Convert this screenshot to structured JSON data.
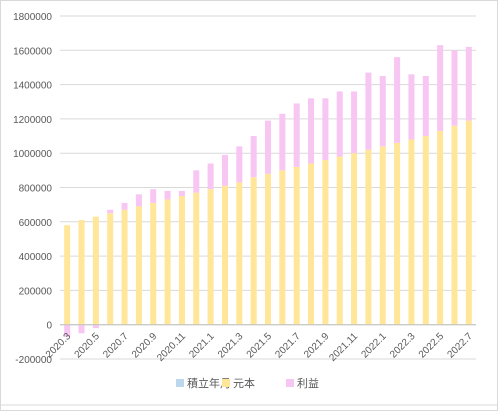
{
  "chart_data": {
    "type": "bar",
    "stacked": true,
    "title": "",
    "xlabel": "",
    "ylabel": "",
    "ylim": [
      -200000,
      1800000
    ],
    "yticks": [
      -200000,
      0,
      200000,
      400000,
      600000,
      800000,
      1000000,
      1200000,
      1400000,
      1600000,
      1800000
    ],
    "grid": true,
    "legend_position": "bottom",
    "x_tick_labels": [
      "2020.3",
      "2020.5",
      "2020.7",
      "2020.9",
      "2020.11",
      "2021.1",
      "2021.3",
      "2021.5",
      "2021.7",
      "2021.9",
      "2021.11",
      "2022.1",
      "2022.3",
      "2022.5",
      "2022.7"
    ],
    "categories": [
      "2020.3",
      "2020.4",
      "2020.5",
      "2020.6",
      "2020.7",
      "2020.8",
      "2020.9",
      "2020.10",
      "2020.11",
      "2020.12",
      "2021.1",
      "2021.2",
      "2021.3",
      "2021.4",
      "2021.5",
      "2021.6",
      "2021.7",
      "2021.8",
      "2021.9",
      "2021.10",
      "2021.11",
      "2021.12",
      "2022.1",
      "2022.2",
      "2022.3",
      "2022.4",
      "2022.5",
      "2022.6",
      "2022.7"
    ],
    "series": [
      {
        "name": "積立年月",
        "color": "#bdd7ee",
        "values": [
          0,
          0,
          0,
          0,
          0,
          0,
          0,
          0,
          0,
          0,
          0,
          0,
          0,
          0,
          0,
          0,
          0,
          0,
          0,
          0,
          0,
          0,
          0,
          0,
          0,
          0,
          0,
          0,
          0
        ]
      },
      {
        "name": "元本",
        "color": "#ffe699",
        "values": [
          580000,
          610000,
          630000,
          650000,
          670000,
          690000,
          710000,
          730000,
          750000,
          770000,
          790000,
          810000,
          830000,
          860000,
          880000,
          900000,
          920000,
          940000,
          960000,
          980000,
          1000000,
          1020000,
          1040000,
          1060000,
          1080000,
          1100000,
          1130000,
          1160000,
          1190000
        ]
      },
      {
        "name": "利益",
        "color": "#f7c6f3",
        "values": [
          -70000,
          -50000,
          -20000,
          20000,
          40000,
          70000,
          80000,
          50000,
          30000,
          130000,
          150000,
          180000,
          210000,
          240000,
          310000,
          330000,
          370000,
          380000,
          360000,
          380000,
          360000,
          450000,
          410000,
          500000,
          380000,
          350000,
          500000,
          440000,
          430000
        ]
      }
    ]
  }
}
